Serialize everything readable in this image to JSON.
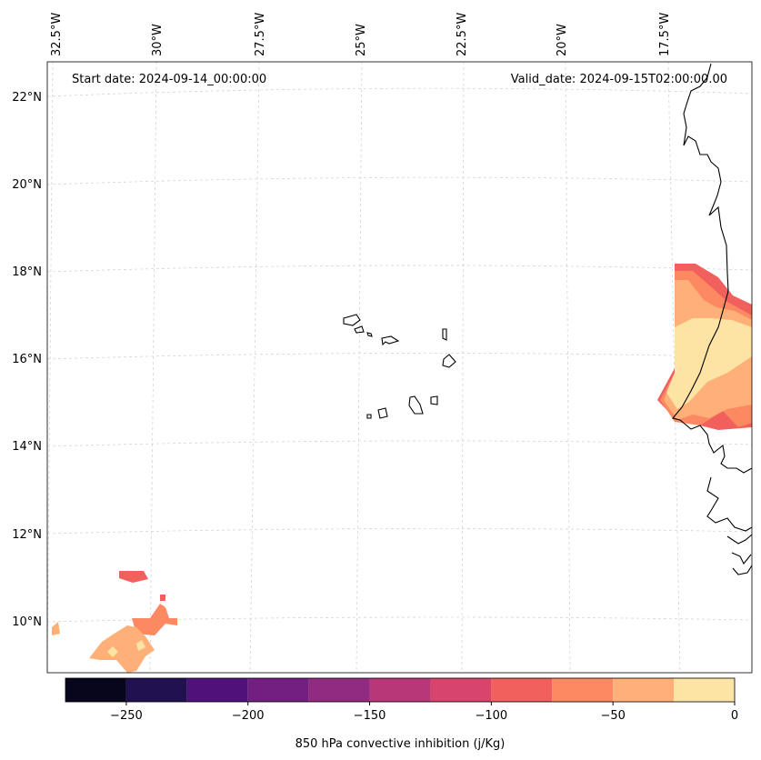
{
  "header": {
    "start_date": "Start date: 2024-09-14_00:00:00",
    "valid_date": "Valid_date: 2024-09-15T02:00:00.00"
  },
  "lon_labels": [
    "32.5°W",
    "30°W",
    "27.5°W",
    "25°W",
    "22.5°W",
    "20°W",
    "17.5°W"
  ],
  "lat_labels": [
    "22°N",
    "20°N",
    "18°N",
    "16°N",
    "14°N",
    "12°N",
    "10°N"
  ],
  "colorbar": {
    "label": "850 hPa convective inhibition (j/Kg)",
    "ticks": [
      "−250",
      "−200",
      "−150",
      "−100",
      "−50",
      "0"
    ],
    "levels": [
      -275,
      -250,
      -225,
      -200,
      -175,
      -150,
      -125,
      -100,
      -75,
      -50,
      -25,
      0
    ],
    "colors": [
      "#07061d",
      "#221150",
      "#4f127b",
      "#721f81",
      "#912b81",
      "#b73779",
      "#d8456c",
      "#f1605d",
      "#fc8961",
      "#feb078",
      "#fde4a5"
    ]
  },
  "fill_colors": {
    "level_-100_-75": "#f1605d",
    "level_-75_-50": "#fc8961",
    "level_-50_-25": "#feb078",
    "level_-25_0": "#fde4a5"
  }
}
